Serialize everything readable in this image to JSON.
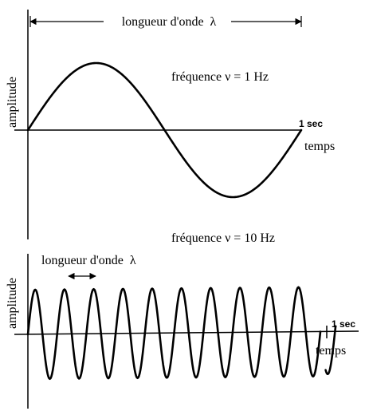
{
  "top_panel": {
    "wavelength_label": "longueur d'onde  λ",
    "frequency_label": "fréquence ν = 1 Hz",
    "y_axis_label": "amplitude",
    "time_marker_label": "1 sec",
    "x_axis_label": "temps",
    "frequency_hz": 1,
    "cycles_drawn": 1
  },
  "bottom_panel": {
    "frequency_label": "fréquence ν = 10 Hz",
    "wavelength_label": "longueur d'onde  λ",
    "y_axis_label": "amplitude",
    "time_marker_label": "1 sec",
    "x_axis_label": "temps",
    "frequency_hz": 10,
    "cycles_drawn": 10
  }
}
